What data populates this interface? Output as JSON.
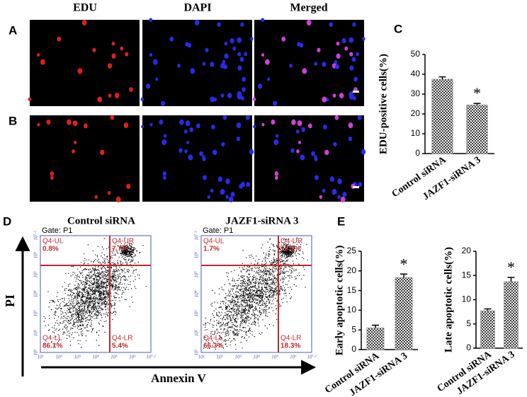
{
  "panel_labels": [
    "A",
    "B",
    "C",
    "D",
    "E"
  ],
  "image_titles": [
    "EDU",
    "DAPI",
    "Merged"
  ],
  "flow": {
    "y_label": "PI",
    "x_label": "Annexin V",
    "axis_ticks": [
      "10¹",
      "10²",
      "10³",
      "10⁴",
      "10⁵",
      "10⁶",
      "10⁷·²"
    ],
    "plots": [
      {
        "title": "Control siRNA",
        "gate": "Gate: P1",
        "quadrants": [
          {
            "name": "Q4-UL",
            "percent": "0.8%"
          },
          {
            "name": "Q4-UR",
            "percent": "7.7%"
          },
          {
            "name": "Q4-LL",
            "percent": "86.1%"
          },
          {
            "name": "Q4-LR",
            "percent": "5.4%"
          }
        ]
      },
      {
        "title": "JAZF1-siRNA 3",
        "gate": "Gate: P1",
        "quadrants": [
          {
            "name": "Q4-UL",
            "percent": "1.7%"
          },
          {
            "name": "Q4-UR",
            "percent": "13.6%"
          },
          {
            "name": "Q4-LL",
            "percent": "66.3%"
          },
          {
            "name": "Q4-LR",
            "percent": "18.3%"
          }
        ]
      }
    ]
  },
  "chart_data": [
    {
      "type": "bar",
      "y_label": "EDU-positive cells(%)",
      "categories": [
        "Control siRNA",
        "JAZF1-siRNA 3"
      ],
      "values": [
        37.5,
        24.5
      ],
      "errors": [
        1.2,
        0.8
      ],
      "significance": [
        null,
        "*"
      ],
      "color": "#9a9a9a",
      "ylim": [
        0,
        50
      ],
      "yticks": [
        0,
        10,
        20,
        30,
        40,
        50
      ]
    },
    {
      "type": "bar",
      "y_label": "Early apoptotic cells(%)",
      "categories": [
        "Control siRNA",
        "JAZF1-siRNA 3"
      ],
      "values": [
        5.5,
        18.3
      ],
      "errors": [
        0.7,
        0.9
      ],
      "significance": [
        null,
        "*"
      ],
      "color": "#9a9a9a",
      "ylim": [
        0,
        25
      ],
      "yticks": [
        0,
        5,
        10,
        15,
        20,
        25
      ]
    },
    {
      "type": "bar",
      "y_label": "Late apoptotic cells(%)",
      "categories": [
        "Control siRNA",
        "JAZF1-siRNA 3"
      ],
      "values": [
        7.7,
        13.7
      ],
      "errors": [
        0.4,
        0.9
      ],
      "significance": [
        null,
        "*"
      ],
      "color": "#9a9a9a",
      "ylim": [
        0,
        20
      ],
      "yticks": [
        0,
        5,
        10,
        15,
        20
      ]
    }
  ]
}
